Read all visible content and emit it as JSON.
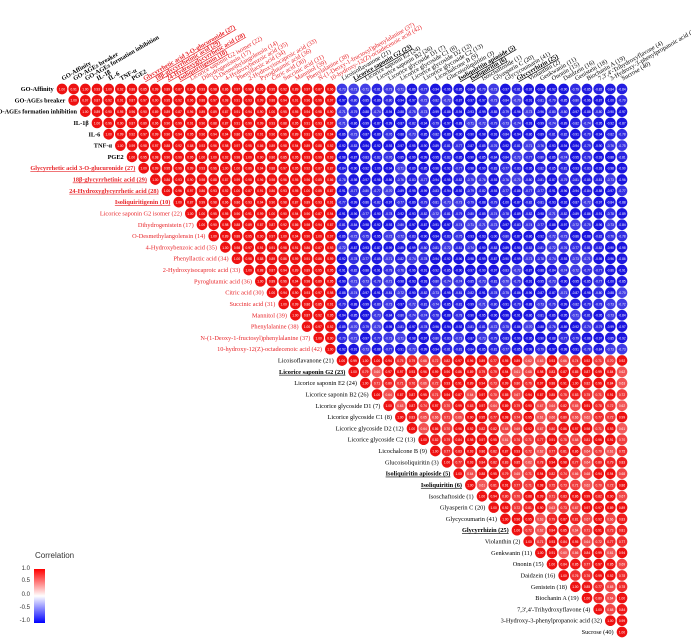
{
  "chart_data": {
    "type": "heatmap",
    "subtype": "upper-triangular correlation matrix (circles)",
    "variables": [
      {
        "label": "GO-Affinity",
        "group": "activity",
        "underline": false
      },
      {
        "label": "GO-AGEs breaker",
        "group": "activity",
        "underline": false
      },
      {
        "label": "GO-AGEs formation inhibition",
        "group": "activity",
        "underline": false
      },
      {
        "label": "IL-1β",
        "group": "activity",
        "underline": false
      },
      {
        "label": "IL-6",
        "group": "activity",
        "underline": false
      },
      {
        "label": "TNF-α",
        "group": "activity",
        "underline": false
      },
      {
        "label": "PGE2",
        "group": "activity",
        "underline": false
      },
      {
        "label": "Glycyrrhetic acid 3-O-glucuronide (27)",
        "group": "red",
        "underline": true
      },
      {
        "label": "18β-glycyrrhetinic acid (29)",
        "group": "red",
        "underline": true
      },
      {
        "label": "24-Hydroxyglycyrrhetic acid (28)",
        "group": "red",
        "underline": true
      },
      {
        "label": "Isoliquiritigenin (10)",
        "group": "red",
        "underline": true
      },
      {
        "label": "Licorice saponin G2 isomer (22)",
        "group": "red",
        "underline": false
      },
      {
        "label": "Dihydrogenistein (17)",
        "group": "red",
        "underline": false
      },
      {
        "label": "O-Desmethylangolensin (14)",
        "group": "red",
        "underline": false
      },
      {
        "label": "4-Hydroxybenzoic acid (35)",
        "group": "red",
        "underline": false
      },
      {
        "label": "Phenyllactic acid  (34)",
        "group": "red",
        "underline": false
      },
      {
        "label": "2-Hydroxyisocaproic acid (33)",
        "group": "red",
        "underline": false
      },
      {
        "label": "Pyroglutamic acid (36)",
        "group": "red",
        "underline": false
      },
      {
        "label": "Citric acid (30)",
        "group": "red",
        "underline": false
      },
      {
        "label": "Succinic acid (31)",
        "group": "red",
        "underline": false
      },
      {
        "label": "Mannitol (39)",
        "group": "red",
        "underline": false
      },
      {
        "label": "Phenylalanine (38)",
        "group": "red",
        "underline": false
      },
      {
        "label": "N-(1-Deoxy-1-fructosyl)phenylalanine (37)",
        "group": "red",
        "underline": false
      },
      {
        "label": "10-hydroxy-12(Z)-octadecenoic acid (42)",
        "group": "red",
        "underline": false
      },
      {
        "label": "Licoisoflavanone  (21)",
        "group": "black",
        "underline": false
      },
      {
        "label": "Licorice saponin G2  (23)",
        "group": "black",
        "underline": true
      },
      {
        "label": "Licorice saponin E2 (24)",
        "group": "black",
        "underline": false
      },
      {
        "label": "Licorice saponin B2 (26)",
        "group": "black",
        "underline": false
      },
      {
        "label": "Licorice glycoside D1 (7)",
        "group": "black",
        "underline": false
      },
      {
        "label": "Licorice glycoside C1 (8)",
        "group": "black",
        "underline": false
      },
      {
        "label": "Licorice glycoside D2 (12)",
        "group": "black",
        "underline": false
      },
      {
        "label": "Licorice glycoside C2 (13)",
        "group": "black",
        "underline": false
      },
      {
        "label": "Licochalcone B  (9)",
        "group": "black",
        "underline": false
      },
      {
        "label": "Glucoisoliquiritin (3)",
        "group": "black",
        "underline": false
      },
      {
        "label": "Isoliquiritin apioside (5)",
        "group": "black",
        "underline": true
      },
      {
        "label": "Isoliquiritin (6)",
        "group": "black",
        "underline": true
      },
      {
        "label": "Isoschaftoside (1)",
        "group": "black",
        "underline": false
      },
      {
        "label": "Glyasperin C (20)",
        "group": "black",
        "underline": false
      },
      {
        "label": "Glycycoumarin (41)",
        "group": "black",
        "underline": false
      },
      {
        "label": "Glycyrrhizin (25)",
        "group": "black",
        "underline": true
      },
      {
        "label": "Violanthin (2)",
        "group": "black",
        "underline": false
      },
      {
        "label": "Genkwanin (11)",
        "group": "black",
        "underline": false
      },
      {
        "label": "Ononin (15)",
        "group": "black",
        "underline": false
      },
      {
        "label": "Daidzein (16)",
        "group": "black",
        "underline": false
      },
      {
        "label": "Genistein (18)",
        "group": "black",
        "underline": false
      },
      {
        "label": "Biochanin A (19)",
        "group": "black",
        "underline": false
      },
      {
        "label": "7,3',4'-Trihydroxyflavone (4)",
        "group": "black",
        "underline": false
      },
      {
        "label": "3-Hydroxy-3-phenylpropanoic acid  (32)",
        "group": "black",
        "underline": false
      },
      {
        "label": "Sucrose (40)",
        "group": "black",
        "underline": false
      }
    ],
    "cluster_boundaries": {
      "cluster1_end_index": 23
    },
    "values_note": "Correlations estimated from circle color: approx. 0.85–1.00 within the first cluster, approx. 0.60–1.00 within the second cluster, approx. -0.70 to -1.00 between clusters.",
    "within_cluster1_r": [
      0.85,
      1.0
    ],
    "within_cluster2_r": [
      0.6,
      1.0
    ],
    "between_cluster_r": [
      -1.0,
      -0.7
    ],
    "legend": {
      "title": "Correlation",
      "ticks": [
        "1.0",
        "0.5",
        "0.0",
        "-0.5",
        "-1.0"
      ],
      "scale": [
        -1.0,
        1.0
      ]
    },
    "colors": {
      "positive": "#ee1111",
      "negative": "#1a14e0",
      "zero": "#ffffff",
      "red_label": "#e8262a",
      "black_label": "#000000"
    }
  }
}
